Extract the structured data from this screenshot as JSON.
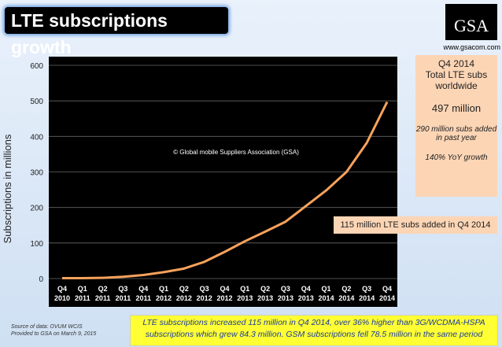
{
  "chart_data": {
    "type": "line",
    "title": "LTE subscriptions growth",
    "y_label": "Subscriptions in millions",
    "categories": [
      "Q4 2010",
      "Q1 2011",
      "Q2 2011",
      "Q3 2011",
      "Q4 2011",
      "Q1 2012",
      "Q2 2012",
      "Q3 2012",
      "Q4 2012",
      "Q1 2013",
      "Q2 2013",
      "Q3 2013",
      "Q4 2013",
      "Q1 2014",
      "Q2 2014",
      "Q3 2014",
      "Q4 2014"
    ],
    "series": [
      {
        "name": "LTE subscriptions",
        "color": "#f6a25c",
        "values": [
          1,
          1,
          2,
          5,
          10,
          18,
          28,
          47,
          75,
          105,
          132,
          160,
          204,
          248,
          300,
          382,
          497
        ]
      }
    ],
    "ylim": [
      0,
      600
    ],
    "yticks": [
      0,
      100,
      200,
      300,
      400,
      500,
      600
    ],
    "grid": true,
    "annotations": [
      "© Global mobile Suppliers Association (GSA)",
      "115 million LTE subs added in Q4 2014"
    ]
  },
  "logo": {
    "text": "GSA",
    "website": "www.gsacom.com"
  },
  "info_box": {
    "lines": [
      "Q4 2014",
      "Total LTE subs",
      "worldwide"
    ],
    "total": "497 million",
    "notes": [
      "290 million subs added in past year",
      "140% YoY growth"
    ]
  },
  "source": [
    "Source of data: OVUM WCIS",
    "Provided to GSA on March 9, 2015"
  ],
  "footer": "LTE subscriptions increased 115 million in Q4 2014, over 36% higher than 3G/WCDMA-HSPA subscriptions which grew 84.3 million. GSM subscriptions fell 78.5 million in the same period"
}
